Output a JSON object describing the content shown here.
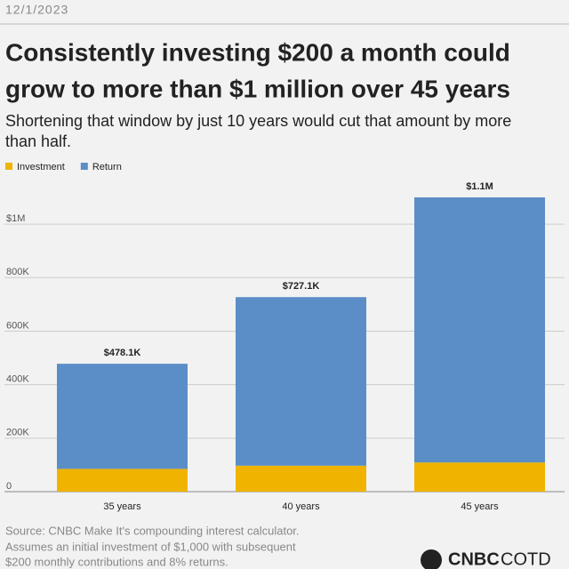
{
  "chart_data": {
    "type": "stacked_bar",
    "date": "12/1/2023",
    "title": [
      "Consistently investing $200 a month could",
      "grow to more than $1 million over 45 years"
    ],
    "subtitle": [
      "Shortening that window by just 10 years would cut that amount by more",
      "than half."
    ],
    "categories": [
      "35 years",
      "40 years",
      "45 years"
    ],
    "series": [
      {
        "name": "Investment",
        "color": "#f0b400",
        "values": [
          85000,
          97000,
          109000
        ]
      },
      {
        "name": "Return",
        "color": "#5b8ec6",
        "values": [
          393100,
          630100,
          991000
        ]
      }
    ],
    "totals": {
      "values": [
        478100,
        727100,
        1100000
      ],
      "value_labels": [
        "$478.1K",
        "$727.1K",
        "$1.1M"
      ]
    },
    "ylim": [
      0,
      1100000
    ],
    "yticks": [
      0,
      {
        "value": 200000,
        "label": "200K"
      },
      {
        "value": 400000,
        "label": "400K"
      },
      {
        "value": 600000,
        "label": "600K"
      },
      {
        "value": 800000,
        "label": "800K"
      },
      {
        "value": 1000000,
        "label": "$1M"
      }
    ],
    "grid": true,
    "legend": "top-left",
    "source": [
      "Source: CNBC Make It's compounding interest calculator.",
      "Assumes an initial investment of $1,000 with subsequent",
      "$200 monthly contributions and 8% returns."
    ],
    "brand": [
      "CNBC",
      "COTD"
    ]
  }
}
